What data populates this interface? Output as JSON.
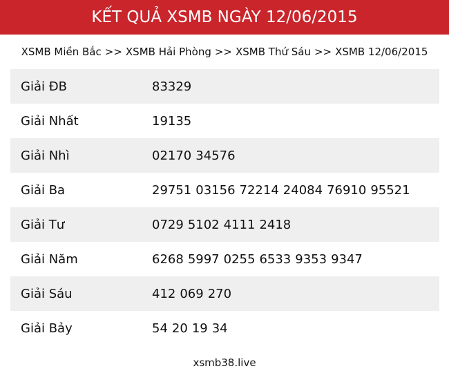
{
  "header": {
    "title": "KẾT QUẢ XSMB NGÀY 12/06/2015"
  },
  "breadcrumb": {
    "separator": ">>",
    "items": [
      "XSMB Miền Bắc",
      "XSMB Hải Phòng",
      "XSMB Thứ Sáu",
      "XSMB 12/06/2015"
    ]
  },
  "table": {
    "rows": [
      {
        "label": "Giải ĐB",
        "numbers": [
          "83329"
        ]
      },
      {
        "label": "Giải Nhất",
        "numbers": [
          "19135"
        ]
      },
      {
        "label": "Giải Nhì",
        "numbers": [
          "02170",
          "34576"
        ]
      },
      {
        "label": "Giải Ba",
        "numbers": [
          "29751",
          "03156",
          "72214",
          "24084",
          "76910",
          "95521"
        ]
      },
      {
        "label": "Giải Tư",
        "numbers": [
          "0729",
          "5102",
          "4111",
          "2418"
        ]
      },
      {
        "label": "Giải Năm",
        "numbers": [
          "6268",
          "5997",
          "0255",
          "6533",
          "9353",
          "9347"
        ]
      },
      {
        "label": "Giải Sáu",
        "numbers": [
          "412",
          "069",
          "270"
        ]
      },
      {
        "label": "Giải Bảy",
        "numbers": [
          "54",
          "20",
          "19",
          "34"
        ]
      }
    ]
  },
  "footer": {
    "text": "xsmb38.live"
  }
}
